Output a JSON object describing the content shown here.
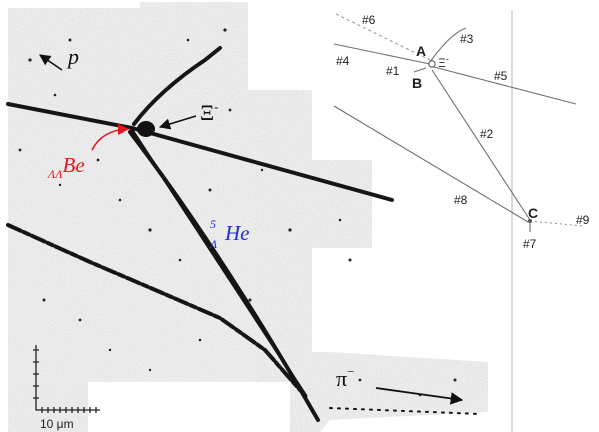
{
  "micrograph": {
    "labels": {
      "proton": "p",
      "xi": "Ξ",
      "xi_charge": "-",
      "llbe_prefix": "ΛΛ",
      "llbe_name": "Be",
      "he_mass": "5",
      "he_lambda": "Λ",
      "he_name": "He",
      "pion": "π",
      "pion_charge": "−"
    },
    "scale_bar": {
      "label": "10 μm"
    },
    "colors": {
      "llbe": "#e8141c",
      "he5": "#1f2bd6",
      "track": "#111111"
    }
  },
  "schematic": {
    "vertices": {
      "a": "A",
      "b": "B",
      "c": "C"
    },
    "tracks": {
      "t1": "#1",
      "t2": "#2",
      "t3": "#3",
      "t4": "#4",
      "t5": "#5",
      "t6": "#6",
      "t7": "#7",
      "t8": "#8",
      "t9": "#9"
    },
    "xi_label": "Ξ",
    "xi_charge": "-"
  }
}
